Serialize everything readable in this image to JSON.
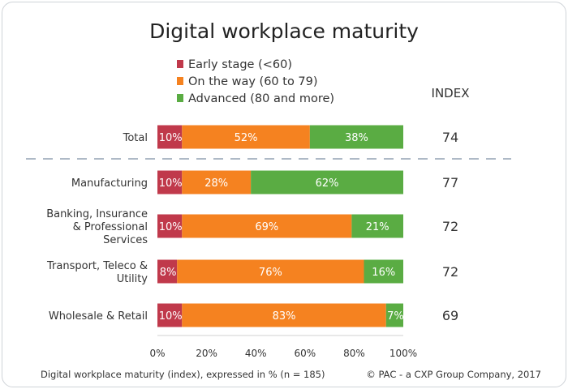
{
  "chart_data": {
    "type": "bar",
    "orientation": "horizontal",
    "stacked": true,
    "title": "Digital workplace maturity",
    "categories": [
      "Total",
      "Manufacturing",
      "Banking, Insurance & Professional Services",
      "Transport, Teleco & Utility",
      "Wholesale & Retail"
    ],
    "category_lines": [
      [
        "Total"
      ],
      [
        "Manufacturing"
      ],
      [
        "Banking, Insurance",
        "& Professional",
        "Services"
      ],
      [
        "Transport, Teleco &",
        "Utility"
      ],
      [
        "Wholesale & Retail"
      ]
    ],
    "series": [
      {
        "name": "Early stage (<60)",
        "color": "#c0394b",
        "values": [
          10,
          10,
          10,
          8,
          10
        ]
      },
      {
        "name": "On the way (60 to 79)",
        "color": "#f58220",
        "values": [
          52,
          28,
          69,
          76,
          83
        ]
      },
      {
        "name": "Advanced (80 and more)",
        "color": "#5aac43",
        "values": [
          38,
          62,
          21,
          16,
          7
        ]
      }
    ],
    "index_header": "INDEX",
    "index_values": [
      74,
      77,
      72,
      72,
      69
    ],
    "xlim": [
      0,
      100
    ],
    "x_ticks": [
      0,
      20,
      40,
      60,
      80,
      100
    ],
    "x_tick_suffix": "%",
    "legend_position": "top",
    "grid": false,
    "footnote": "Digital workplace maturity (index), expressed in % (n = 185)",
    "source": "© PAC - a CXP Group Company, 2017"
  }
}
